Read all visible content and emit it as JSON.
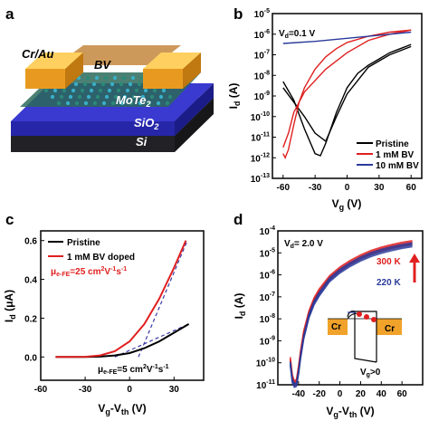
{
  "panels": {
    "a": "a",
    "b": "b",
    "c": "c",
    "d": "d"
  },
  "device": {
    "electrode": "Cr/Au",
    "dopant": "BV",
    "channel": "MoTe",
    "channel_sub": "2",
    "dielectric": "SiO",
    "dielectric_sub": "2",
    "substrate": "Si"
  },
  "chart_data": [
    {
      "panel": "b",
      "type": "line",
      "scale_y": "log",
      "xlabel": "V_g (V)",
      "ylabel": "I_d (A)",
      "xlim": [
        -70,
        70
      ],
      "ylim_exp": [
        -13,
        -5
      ],
      "xticks": [
        "-60",
        "-30",
        "0",
        "30",
        "60"
      ],
      "yticks": [
        "10^-5",
        "10^-6",
        "10^-7",
        "10^-8",
        "10^-9",
        "10^-10",
        "10^-11",
        "10^-12",
        "10^-13"
      ],
      "annotation": "V_d=0.1 V",
      "legend_position": "bottom-right",
      "series": [
        {
          "name": "Pristine",
          "color": "#000000",
          "x": [
            -60,
            -50,
            -40,
            -30,
            -25,
            -20,
            -10,
            0,
            10,
            20,
            30,
            40,
            50,
            60
          ],
          "y": [
            -8.3,
            -9.2,
            -10.6,
            -11.8,
            -11.9,
            -11.3,
            -9.8,
            -8.6,
            -7.9,
            -7.5,
            -7.2,
            -6.9,
            -6.7,
            -6.5
          ],
          "x2": [
            60,
            40,
            20,
            0,
            -10,
            -20,
            -30,
            -40,
            -50,
            -60
          ],
          "y2": [
            -6.6,
            -7.0,
            -7.6,
            -8.9,
            -10.0,
            -11.2,
            -10.8,
            -10.0,
            -9.3,
            -8.6
          ]
        },
        {
          "name": "1 mM BV",
          "color": "#e02020",
          "x": [
            -60,
            -58,
            -55,
            -50,
            -45,
            -40,
            -30,
            -20,
            -10,
            0,
            20,
            40,
            60
          ],
          "y": [
            -11.8,
            -12.0,
            -11.6,
            -10.4,
            -9.3,
            -8.6,
            -7.7,
            -7.1,
            -6.7,
            -6.4,
            -6.1,
            -5.9,
            -5.8
          ],
          "x2": [
            60,
            40,
            20,
            0,
            -20,
            -40,
            -50,
            -55,
            -60
          ],
          "y2": [
            -5.8,
            -6.0,
            -6.3,
            -6.9,
            -7.7,
            -8.8,
            -9.8,
            -10.8,
            -11.5
          ]
        },
        {
          "name": "10 mM BV",
          "color": "#2a3a9a",
          "x": [
            -60,
            -30,
            0,
            30,
            60
          ],
          "y": [
            -6.45,
            -6.35,
            -6.2,
            -6.05,
            -5.9
          ]
        }
      ]
    },
    {
      "panel": "c",
      "type": "line",
      "xlabel": "V_g-V_th (V)",
      "ylabel": "I_d (μA)",
      "xlim": [
        -60,
        50
      ],
      "ylim": [
        -0.12,
        0.65
      ],
      "xticks": [
        "-60",
        "-30",
        "0",
        "30"
      ],
      "yticks": [
        "0.0",
        "0.2",
        "0.4",
        "0.6"
      ],
      "legend_position": "top-left",
      "annotations": [
        "μe-FE=25 cm²V⁻¹s⁻¹",
        "μe-FE=5 cm²V⁻¹s⁻¹"
      ],
      "series": [
        {
          "name": "Pristine",
          "color": "#000000",
          "x": [
            -50,
            -40,
            -30,
            -20,
            -10,
            0,
            10,
            20,
            30,
            40
          ],
          "y": [
            0,
            0,
            0,
            0.002,
            0.008,
            0.02,
            0.045,
            0.08,
            0.125,
            0.17
          ]
        },
        {
          "name": "1 mM BV doped",
          "color": "#e02020",
          "x": [
            -50,
            -40,
            -30,
            -20,
            -10,
            0,
            10,
            20,
            30,
            38
          ],
          "y": [
            0,
            0,
            0.001,
            0.008,
            0.03,
            0.08,
            0.17,
            0.3,
            0.46,
            0.6
          ]
        }
      ]
    },
    {
      "panel": "d",
      "type": "line",
      "scale_y": "log",
      "xlabel": "V_g-V_th (V)",
      "ylabel": "I_d (A)",
      "xlim": [
        -60,
        80
      ],
      "ylim_exp": [
        -11,
        -4
      ],
      "xticks": [
        "-40",
        "-20",
        "0",
        "20",
        "40",
        "60"
      ],
      "yticks": [
        "10^-4",
        "10^-5",
        "10^-6",
        "10^-7",
        "10^-8",
        "10^-9",
        "10^-10",
        "10^-11"
      ],
      "annotation": "V_d= 2.0 V",
      "temperature_high": "300 K",
      "temperature_low": "220 K",
      "inset": {
        "left_label": "Cr",
        "right_label": "Cr",
        "bias_label": "V_g>0"
      },
      "series": [
        {
          "name": "300 K",
          "color": "#e02020",
          "x": [
            -48,
            -46,
            -44,
            -42,
            -40,
            -38,
            -35,
            -30,
            -25,
            -20,
            -10,
            0,
            10,
            20,
            30,
            40,
            50,
            60,
            70
          ],
          "y": [
            -9.8,
            -10.6,
            -10.9,
            -10.8,
            -10.2,
            -9.5,
            -8.6,
            -7.7,
            -7.1,
            -6.7,
            -6.1,
            -5.7,
            -5.4,
            -5.15,
            -4.95,
            -4.8,
            -4.68,
            -4.58,
            -4.5
          ]
        },
        {
          "name": "220 K",
          "color": "#2a3a9a",
          "x": [
            -48,
            -46,
            -44,
            -42,
            -40,
            -38,
            -35,
            -30,
            -25,
            -20,
            -10,
            0,
            10,
            20,
            30,
            40,
            50,
            60,
            70
          ],
          "y": [
            -10.0,
            -10.8,
            -11.0,
            -10.95,
            -10.4,
            -9.7,
            -8.8,
            -7.85,
            -7.25,
            -6.85,
            -6.2,
            -5.8,
            -5.5,
            -5.25,
            -5.05,
            -4.9,
            -4.78,
            -4.68,
            -4.6
          ]
        }
      ]
    }
  ]
}
